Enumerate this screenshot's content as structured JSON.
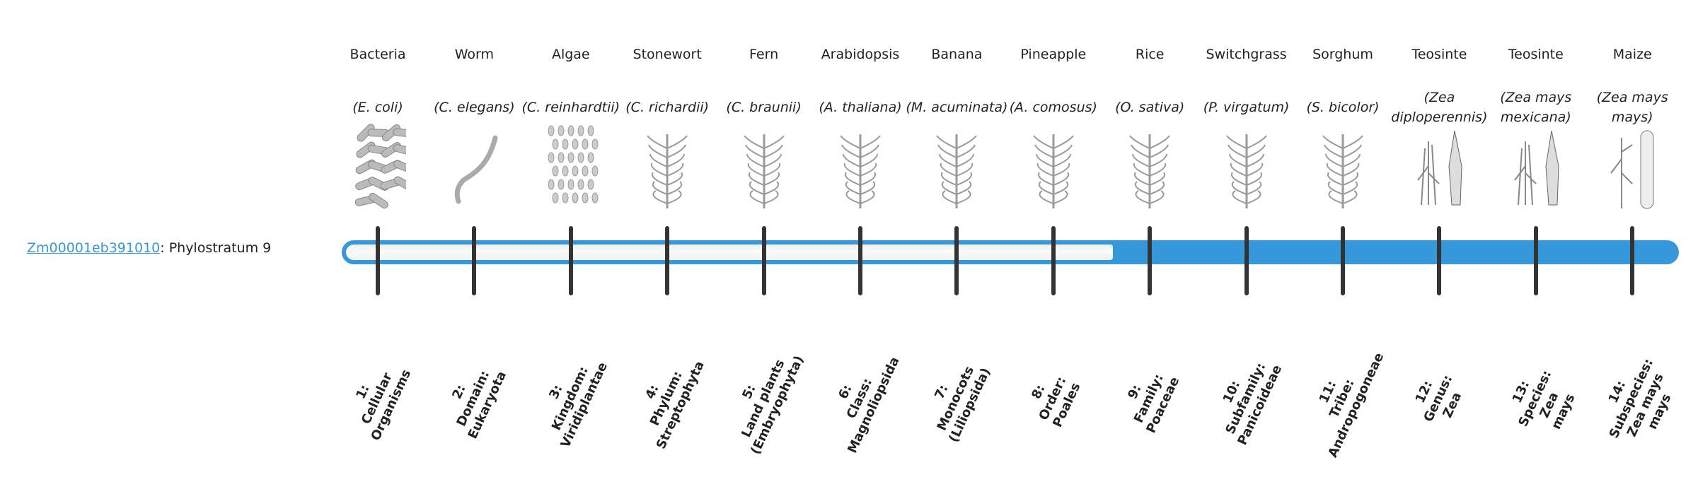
{
  "gene": {
    "id": "Zm00001eb391010",
    "suffix": ": Phylostratum 9",
    "phylostratum": 9
  },
  "colors": {
    "accent": "#3598db",
    "tick": "#333333",
    "empty": "#f4f4f4"
  },
  "strata": [
    {
      "common": "Bacteria",
      "sci": "(E. coli)",
      "rank": [
        "1:",
        "Cellular",
        "Organisms"
      ],
      "icon": "bacteria-icon"
    },
    {
      "common": "Worm",
      "sci": "(C. elegans)",
      "rank": [
        "2:",
        "Domain:",
        "Eukaryota"
      ],
      "icon": "worm-icon"
    },
    {
      "common": "Algae",
      "sci": "(C. reinhardtii)",
      "rank": [
        "3:",
        "Kingdom:",
        "Viridiplantae"
      ],
      "icon": "algae-icon"
    },
    {
      "common": "Stonewort",
      "sci": "(C. richardii)",
      "rank": [
        "4:",
        "Phylum:",
        "Streptophyta"
      ],
      "icon": "stonewort-icon"
    },
    {
      "common": "Fern",
      "sci": "(C. braunii)",
      "rank": [
        "5:",
        "Land plants",
        "(Embryophyta)"
      ],
      "icon": "fern-icon"
    },
    {
      "common": "Arabidopsis",
      "sci": "(A. thaliana)",
      "rank": [
        "6:",
        "Class:",
        "Magnoliopsida"
      ],
      "icon": "arabidopsis-icon"
    },
    {
      "common": "Banana",
      "sci": "(M. acuminata)",
      "rank": [
        "7:",
        "Monocots",
        "(Liliopsida)"
      ],
      "icon": "banana-icon"
    },
    {
      "common": "Pineapple",
      "sci": "(A. comosus)",
      "rank": [
        "8:",
        "Order:",
        "Poales"
      ],
      "icon": "pineapple-icon"
    },
    {
      "common": "Rice",
      "sci": "(O. sativa)",
      "rank": [
        "9:",
        "Family:",
        "Poaceae"
      ],
      "icon": "rice-icon"
    },
    {
      "common": "Switchgrass",
      "sci": "(P. virgatum)",
      "rank": [
        "10:",
        "Subfamily:",
        "Panicoideae"
      ],
      "icon": "switchgrass-icon"
    },
    {
      "common": "Sorghum",
      "sci": "(S. bicolor)",
      "rank": [
        "11:",
        "Tribe:",
        "Andropogoneae"
      ],
      "icon": "sorghum-icon"
    },
    {
      "common": "Teosinte",
      "sci": "(Zea diploperennis)",
      "rank": [
        "12:",
        "Genus:",
        "Zea"
      ],
      "icon": "teosinte-icon"
    },
    {
      "common": "Teosinte",
      "sci": "(Zea mays mexicana)",
      "rank": [
        "13:",
        "Species:",
        "Zea",
        "mays"
      ],
      "icon": "teosinte-mexicana-icon"
    },
    {
      "common": "Maize",
      "sci": "(Zea mays mays)",
      "rank": [
        "14:",
        "Subspecies:",
        "Zea mays",
        "mays"
      ],
      "icon": "maize-icon"
    }
  ]
}
